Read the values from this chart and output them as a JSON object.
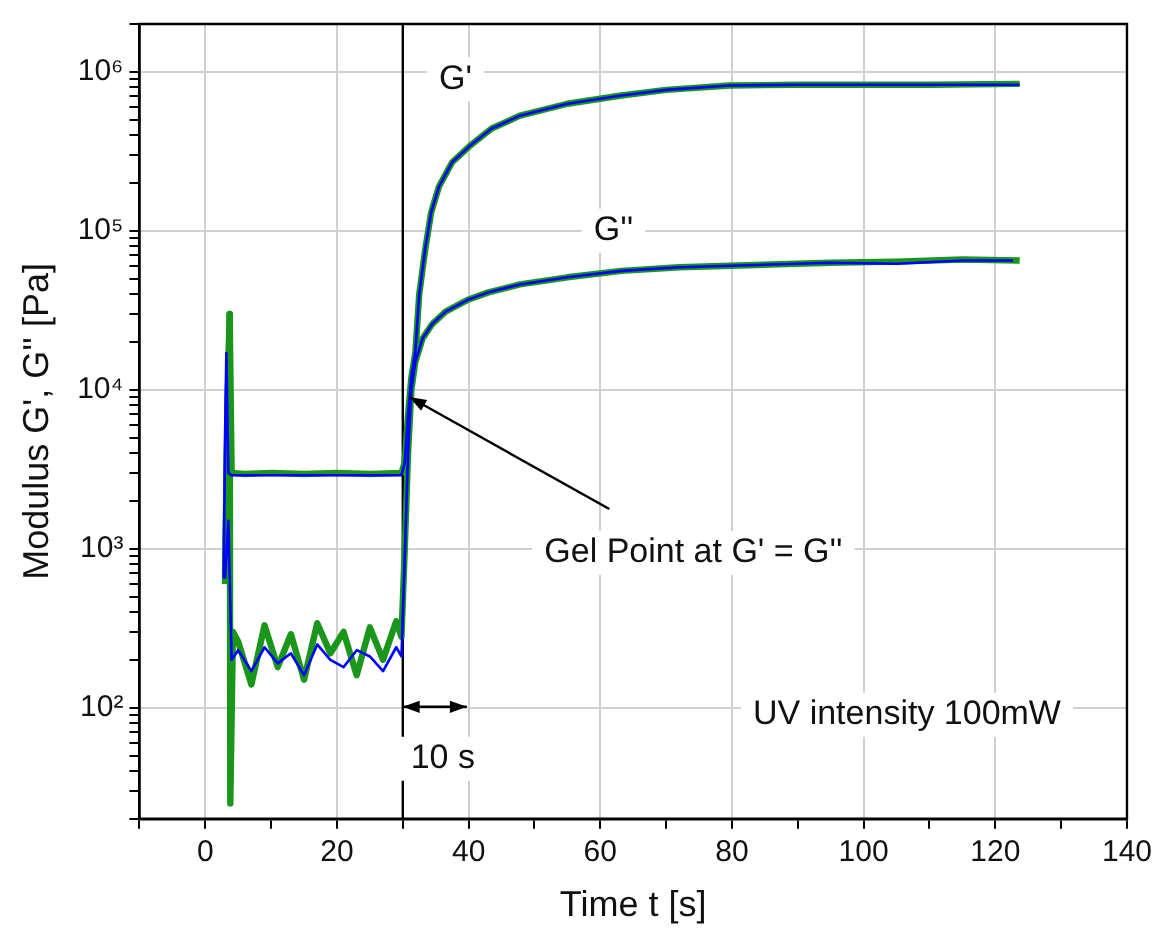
{
  "chart_data": {
    "type": "line",
    "xlabel": "Time t [s]",
    "ylabel": "Modulus G', G'' [Pa]",
    "log": "y",
    "grid": true,
    "legend": false,
    "marker": "none",
    "line_style": "solid",
    "xlim": [
      -10,
      140
    ],
    "xticks": [
      {
        "value": -10,
        "label": null
      },
      0,
      {
        "value": 10,
        "label": null
      },
      20,
      {
        "value": 30,
        "label": null
      },
      40,
      {
        "value": 50,
        "label": null
      },
      60,
      {
        "value": 70,
        "label": null
      },
      80,
      {
        "value": 90,
        "label": null
      },
      100,
      {
        "value": 110,
        "label": null
      },
      120,
      {
        "value": 130,
        "label": null
      },
      140
    ],
    "ylim": [
      20,
      2000000
    ],
    "yticks": [
      {
        "value": 20,
        "label": null
      },
      {
        "value": 30,
        "label": null
      },
      {
        "value": 40,
        "label": null
      },
      {
        "value": 50,
        "label": null
      },
      {
        "value": 60,
        "label": null
      },
      {
        "value": 70,
        "label": null
      },
      {
        "value": 80,
        "label": null
      },
      {
        "value": 90,
        "label": null
      },
      {
        "value": 100,
        "label": "10²"
      },
      {
        "value": 200,
        "label": null
      },
      {
        "value": 300,
        "label": null
      },
      {
        "value": 400,
        "label": null
      },
      {
        "value": 500,
        "label": null
      },
      {
        "value": 600,
        "label": null
      },
      {
        "value": 700,
        "label": null
      },
      {
        "value": 800,
        "label": null
      },
      {
        "value": 900,
        "label": null
      },
      {
        "value": 1000,
        "label": "10³"
      },
      {
        "value": 2000,
        "label": null
      },
      {
        "value": 3000,
        "label": null
      },
      {
        "value": 4000,
        "label": null
      },
      {
        "value": 5000,
        "label": null
      },
      {
        "value": 6000,
        "label": null
      },
      {
        "value": 7000,
        "label": null
      },
      {
        "value": 8000,
        "label": null
      },
      {
        "value": 9000,
        "label": null
      },
      {
        "value": 10000,
        "label": "10⁴"
      },
      {
        "value": 20000,
        "label": null
      },
      {
        "value": 30000,
        "label": null
      },
      {
        "value": 40000,
        "label": null
      },
      {
        "value": 50000,
        "label": null
      },
      {
        "value": 60000,
        "label": null
      },
      {
        "value": 70000,
        "label": null
      },
      {
        "value": 80000,
        "label": null
      },
      {
        "value": 90000,
        "label": null
      },
      {
        "value": 100000,
        "label": "10⁵"
      },
      {
        "value": 200000,
        "label": null
      },
      {
        "value": 300000,
        "label": null
      },
      {
        "value": 400000,
        "label": null
      },
      {
        "value": 500000,
        "label": null
      },
      {
        "value": 600000,
        "label": null
      },
      {
        "value": 700000,
        "label": null
      },
      {
        "value": 800000,
        "label": null
      },
      {
        "value": 900000,
        "label": null
      },
      {
        "value": 1000000,
        "label": "10⁶"
      },
      {
        "value": 2000000,
        "label": null
      }
    ],
    "series": [
      {
        "color": "#1a961a",
        "x": [
          3.0,
          3.4,
          3.7,
          4.0,
          6,
          10,
          15,
          20,
          25,
          29.8,
          30.3,
          30.8,
          31.3,
          31.9,
          32.5,
          33.4,
          34.3,
          35.5,
          37.5,
          40.1,
          43.5,
          47.8,
          55,
          63.2,
          70,
          79.6,
          90,
          100,
          110,
          123.7
        ],
        "values": [
          700,
          8000,
          30000,
          3000,
          2950,
          3000,
          2950,
          3000,
          2950,
          3000,
          3500,
          7000,
          12000,
          17000,
          40000,
          76000,
          130000,
          190000,
          270000,
          340000,
          440000,
          530000,
          630000,
          710000,
          770000,
          820000,
          830000,
          830000,
          830000,
          840000
        ]
      },
      {
        "color": "#0000ff",
        "x": [
          2.8,
          3.0,
          3.2,
          3.5,
          4.0,
          6,
          10,
          15,
          20,
          25,
          29.8,
          30.3,
          30.8,
          31.3,
          31.9,
          32.5,
          33.4,
          34.3,
          35.5,
          37.5,
          40.1,
          43.5,
          47.8,
          55,
          63.2,
          70,
          79.6,
          90,
          100,
          110,
          123.7
        ],
        "values": [
          650,
          5000,
          17000,
          3000,
          2900,
          2900,
          2900,
          2900,
          2900,
          2900,
          2900,
          3500,
          7000,
          12000,
          17400,
          40000,
          77000,
          130000,
          190000,
          270000,
          340000,
          440000,
          530000,
          630000,
          710000,
          770000,
          820000,
          830000,
          830000,
          830000,
          830000
        ]
      },
      {
        "color": "#1a961a",
        "x": [
          3.0,
          3.4,
          3.7,
          3.8,
          4.2,
          5,
          7,
          9,
          11,
          13,
          15,
          17,
          19,
          21,
          23,
          25,
          27,
          29,
          29.8,
          30.3,
          30.8,
          31.3,
          31.9,
          33,
          34.5,
          36.5,
          40,
          43,
          47.8,
          55,
          63.2,
          72,
          83.7,
          95,
          105,
          115,
          123.7
        ],
        "values": [
          600,
          8000,
          30000,
          25,
          300,
          260,
          140,
          330,
          180,
          290,
          150,
          340,
          220,
          300,
          160,
          320,
          200,
          350,
          280,
          1000,
          4000,
          10000,
          15000,
          21000,
          26000,
          31000,
          37000,
          41000,
          46000,
          51000,
          56000,
          59000,
          61000,
          63000,
          64000,
          66000,
          65000
        ]
      },
      {
        "color": "#0000ff",
        "x": [
          3.0,
          3.5,
          4.0,
          5,
          7,
          9,
          11,
          13,
          15,
          17,
          19,
          21,
          23,
          25,
          27,
          29,
          29.8,
          30.3,
          30.8,
          31.3,
          31.9,
          33,
          34.5,
          36.5,
          40,
          43,
          47.8,
          55,
          63.2,
          72,
          83.7,
          95,
          105,
          115,
          122.7
        ],
        "values": [
          650,
          1500,
          200,
          230,
          170,
          240,
          190,
          220,
          160,
          250,
          200,
          180,
          230,
          210,
          170,
          240,
          210,
          900,
          4000,
          10000,
          15000,
          21000,
          26000,
          31000,
          37000,
          41000,
          46000,
          51000,
          56000,
          59000,
          61000,
          63000,
          62000,
          65000,
          65000
        ]
      }
    ],
    "ref_lines": [
      {
        "axis": "x",
        "value": 30,
        "color": "#000000"
      }
    ],
    "annotations": [
      {
        "text": "G'",
        "x": 38,
        "y": 900000
      },
      {
        "text": "G''",
        "x": 62,
        "y": 100000
      },
      {
        "text": "Gel Point at G' = G''",
        "x": 31,
        "y": 9000
      },
      "10 s",
      "UV intensity 100mW"
    ]
  }
}
